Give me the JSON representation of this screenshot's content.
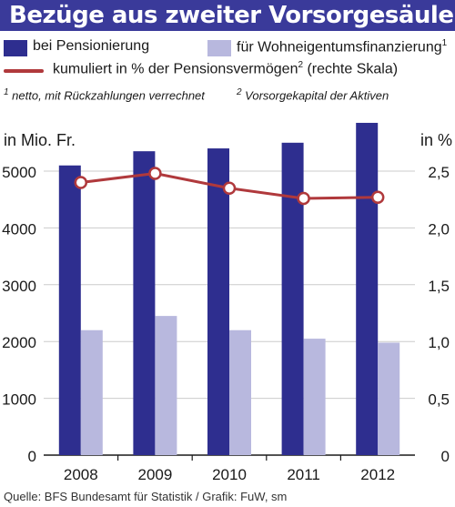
{
  "header": {
    "title": "Bezüge aus zweiter Vorsorgesäule"
  },
  "legend": {
    "item1": {
      "label": "bei Pensionierung",
      "sup": ""
    },
    "item2": {
      "label": "für Wohneigentumsfinanzierung",
      "sup": "1"
    },
    "item3": {
      "label": "kumuliert in % der Pensionsvermögen",
      "sup": "2",
      "suffix": " (rechte Skala)"
    }
  },
  "notes": {
    "n1": {
      "sup": "1",
      "text": " netto, mit Rückzahlungen verrechnet"
    },
    "n2": {
      "sup": "2",
      "text": " Vorsorgekapital der Aktiven"
    }
  },
  "axis": {
    "left_unit": "in Mio. Fr.",
    "right_unit": "in %"
  },
  "source": "Quelle: BFS Bundesamt für Statistik / Grafik: FuW, sm",
  "colors": {
    "navy": "#2e2e8f",
    "lavender": "#b8b8de",
    "line": "#b0393c",
    "grid": "#cccccc",
    "title_bg": "#3a3a9a"
  },
  "chart_data": {
    "type": "bar",
    "categories": [
      "2008",
      "2009",
      "2010",
      "2011",
      "2012"
    ],
    "series": [
      {
        "name": "bei Pensionierung",
        "type": "bar",
        "axis": "left",
        "values": [
          5100,
          5350,
          5400,
          5500,
          5850
        ]
      },
      {
        "name": "für Wohneigentumsfinanzierung",
        "type": "bar",
        "axis": "left",
        "values": [
          2200,
          2450,
          2200,
          2050,
          1980
        ]
      },
      {
        "name": "kumuliert in % der Pensionsvermögen",
        "type": "line",
        "axis": "right",
        "values": [
          2.4,
          2.48,
          2.35,
          2.26,
          2.27
        ]
      }
    ],
    "y_left": {
      "label": "in Mio. Fr.",
      "ticks": [
        "0",
        "1000",
        "2000",
        "3000",
        "4000",
        "5000"
      ],
      "ylim": [
        0,
        6000
      ]
    },
    "y_right": {
      "label": "in %",
      "ticks": [
        "0",
        "0,5",
        "1,0",
        "1,5",
        "2,0",
        "2,5"
      ],
      "ylim": [
        0,
        3.0
      ]
    },
    "grid": "horizontal"
  }
}
